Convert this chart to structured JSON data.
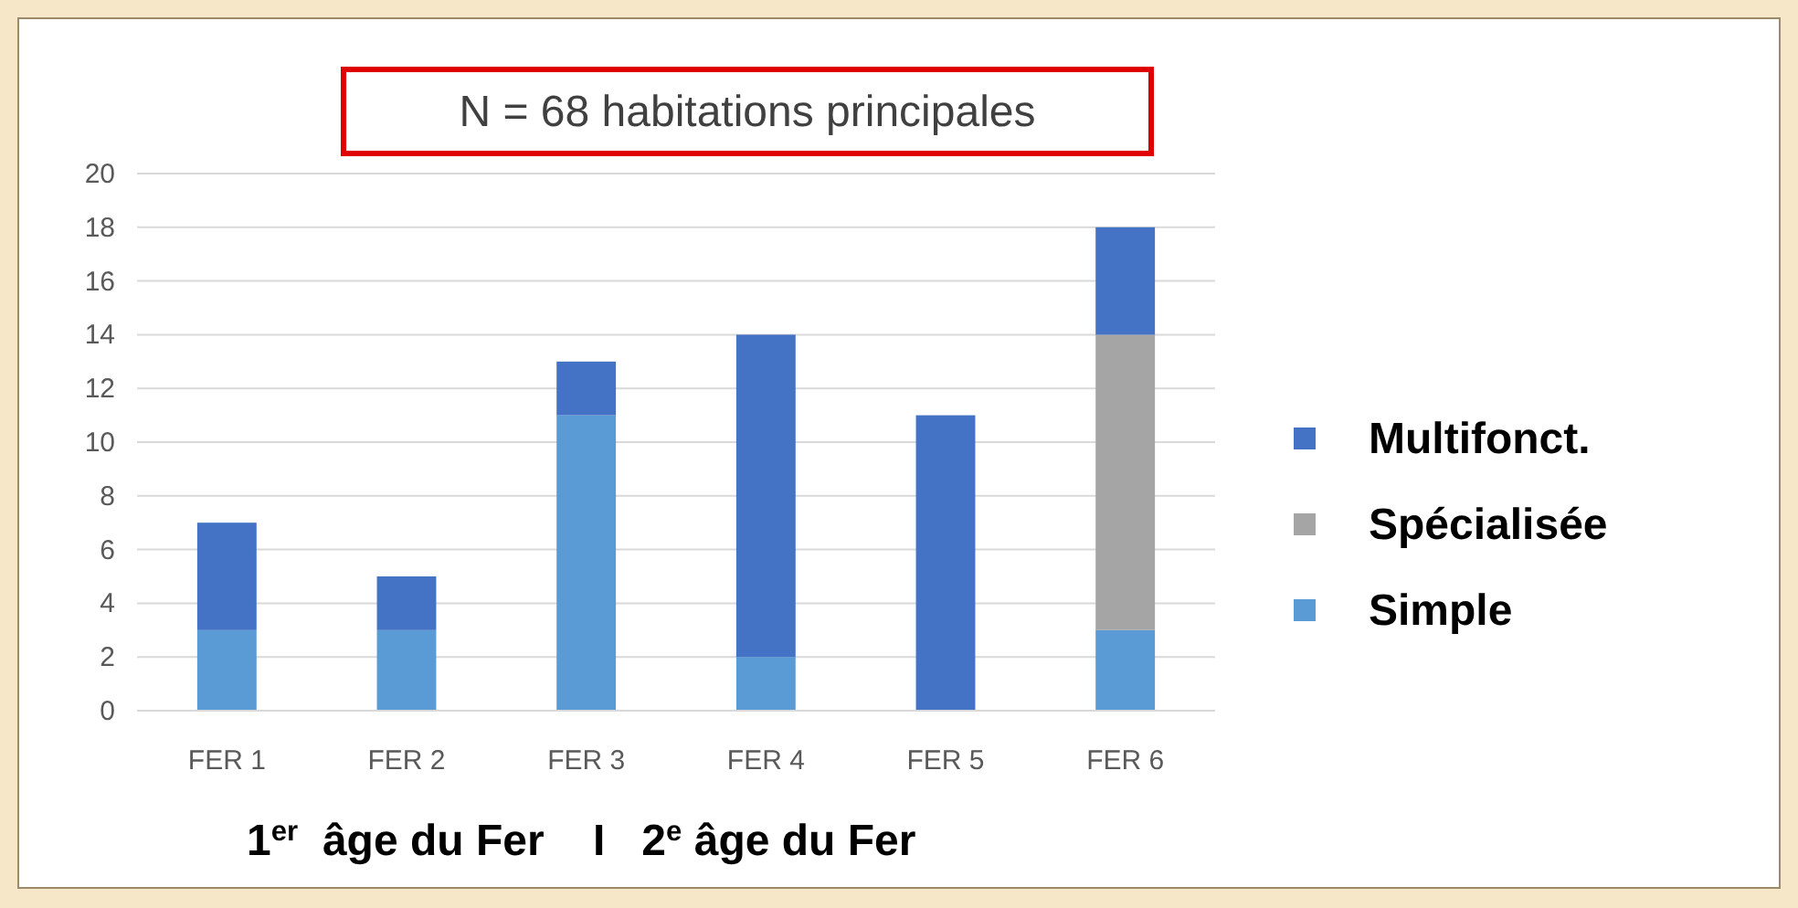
{
  "chart_data": {
    "type": "bar",
    "title": "N = 68 habitations principales",
    "categories": [
      "FER 1",
      "FER 2",
      "FER 3",
      "FER 4",
      "FER 5",
      "FER 6"
    ],
    "stacked": true,
    "ylim": [
      0,
      20
    ],
    "yticks": [
      0,
      2,
      4,
      6,
      8,
      10,
      12,
      14,
      16,
      18,
      20
    ],
    "grid": "y",
    "legend": "right",
    "series": [
      {
        "name": "Simple",
        "color": "#5b9bd5",
        "values": [
          3,
          3,
          11,
          2,
          0,
          3
        ]
      },
      {
        "name": "Spécialisée",
        "color": "#a5a5a5",
        "values": [
          0,
          0,
          0,
          0,
          0,
          11
        ]
      },
      {
        "name": "Multifonct.",
        "color": "#4472c4",
        "values": [
          4,
          2,
          2,
          12,
          11,
          4
        ]
      }
    ],
    "annotations": [
      "1$^{er}$  âge du Fer    I   2$^{e}$ âge du Fer"
    ]
  }
}
